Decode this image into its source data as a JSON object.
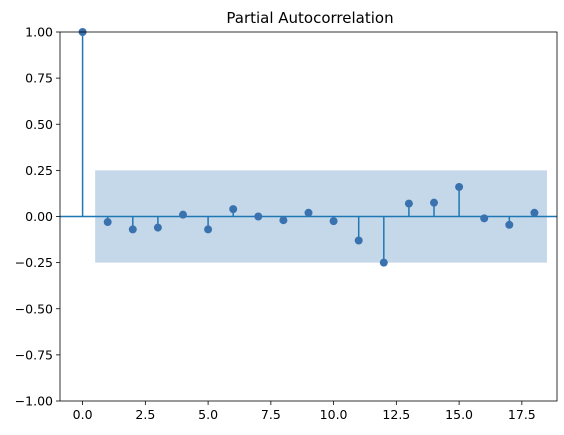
{
  "chart_data": {
    "type": "stem",
    "title": "Partial Autocorrelation",
    "xlabel": "",
    "ylabel": "",
    "xlim": [
      -0.9,
      18.9
    ],
    "ylim": [
      -1.0,
      1.0
    ],
    "x_ticks": [
      0,
      2.5,
      5,
      7.5,
      10,
      12.5,
      15,
      17.5
    ],
    "x_tick_labels": [
      "0.0",
      "2.5",
      "5.0",
      "7.5",
      "10.0",
      "12.5",
      "15.0",
      "17.5"
    ],
    "y_ticks": [
      -1.0,
      -0.75,
      -0.5,
      -0.25,
      0.0,
      0.25,
      0.5,
      0.75,
      1.0
    ],
    "y_tick_labels": [
      "−1.00",
      "−0.75",
      "−0.50",
      "−0.25",
      "0.00",
      "0.25",
      "0.50",
      "0.75",
      "1.00"
    ],
    "grid": false,
    "confidence_band": {
      "x_range": [
        0.5,
        18.5
      ],
      "lower": -0.25,
      "upper": 0.25
    },
    "lags": [
      0,
      1,
      2,
      3,
      4,
      5,
      6,
      7,
      8,
      9,
      10,
      11,
      12,
      13,
      14,
      15,
      16,
      17,
      18
    ],
    "values": [
      1.0,
      -0.03,
      -0.07,
      -0.06,
      0.01,
      -0.07,
      0.04,
      0.0,
      -0.02,
      0.02,
      -0.025,
      -0.13,
      -0.25,
      0.07,
      0.075,
      0.16,
      -0.01,
      -0.045,
      0.02
    ]
  },
  "colors": {
    "series": "#1f77b4",
    "marker": "#3a72b0",
    "band": "#c5d8ea",
    "axis": "#000000",
    "background": "#ffffff"
  }
}
